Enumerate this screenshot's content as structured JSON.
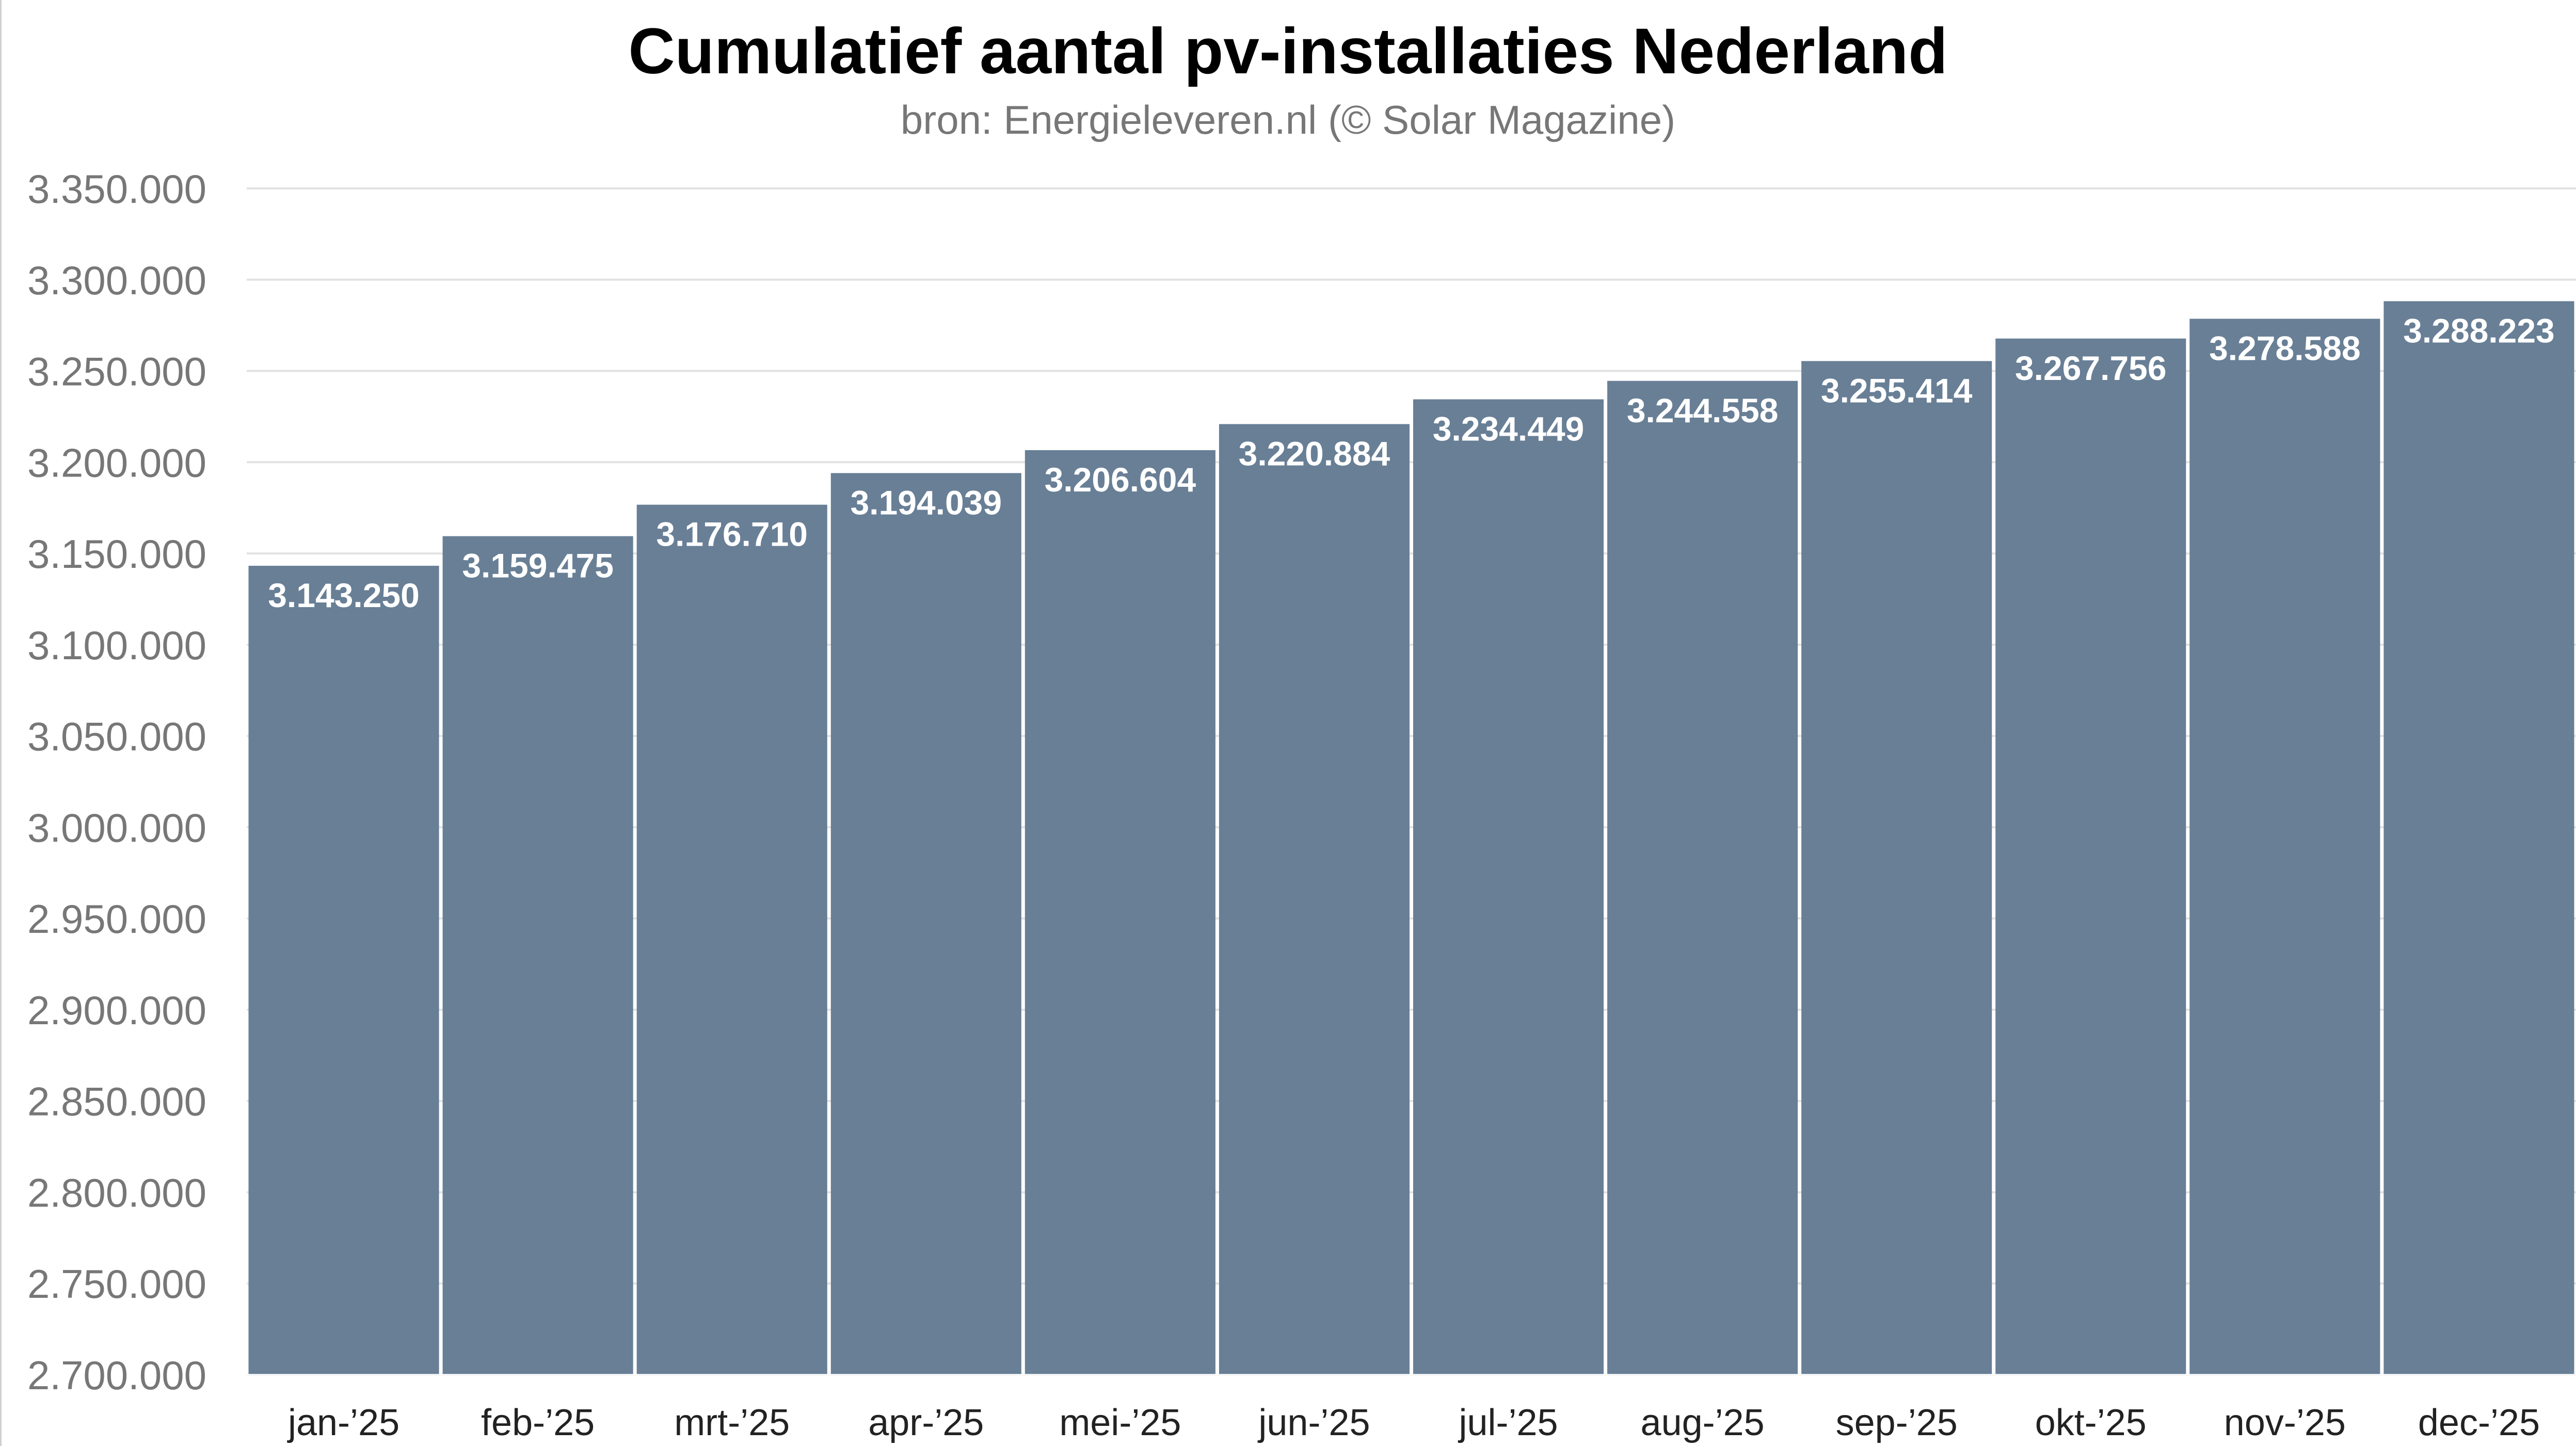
{
  "chart_data": {
    "type": "bar",
    "title": "Cumulatief aantal pv-installaties Nederland",
    "subtitle": "bron: Energieleveren.nl (© Solar Magazine)",
    "xlabel": "",
    "ylabel": "",
    "categories": [
      "jan-’25",
      "feb-’25",
      "mrt-’25",
      "apr-’25",
      "mei-’25",
      "jun-’25",
      "jul-’25",
      "aug-’25",
      "sep-’25",
      "okt-’25",
      "nov-’25",
      "dec-’25"
    ],
    "values": [
      3143250,
      3159475,
      3176710,
      3194039,
      3206604,
      3220884,
      3234449,
      3244558,
      3255414,
      3267756,
      3278588,
      3288223
    ],
    "data_labels": [
      "3.143.250",
      "3.159.475",
      "3.176.710",
      "3.194.039",
      "3.206.604",
      "3.220.884",
      "3.234.449",
      "3.244.558",
      "3.255.414",
      "3.267.756",
      "3.278.588",
      "3.288.223"
    ],
    "ylim": [
      2700000,
      3350000
    ],
    "yticks": [
      2700000,
      2750000,
      2800000,
      2850000,
      2900000,
      2950000,
      3000000,
      3050000,
      3100000,
      3150000,
      3200000,
      3250000,
      3300000,
      3350000
    ],
    "ytick_labels": [
      "2.700.000",
      "2.750.000",
      "2.800.000",
      "2.850.000",
      "2.900.000",
      "2.950.000",
      "3.000.000",
      "3.050.000",
      "3.100.000",
      "3.150.000",
      "3.200.000",
      "3.250.000",
      "3.300.000",
      "3.350.000"
    ],
    "grid": true,
    "legend": "none",
    "bar_color": "#687f96",
    "grid_color": "#e2e2e2",
    "axis_text_color": "#777777"
  }
}
